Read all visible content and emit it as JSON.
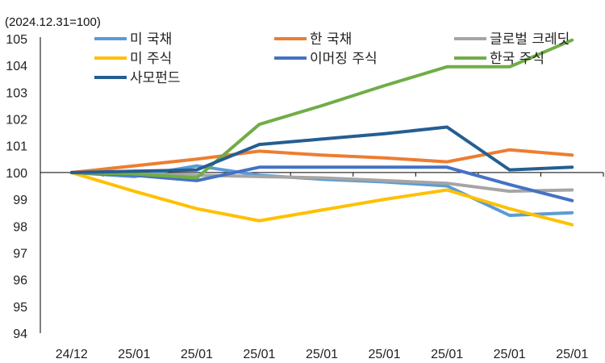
{
  "chart_data": {
    "type": "line",
    "unit_label": "(2024.12.31=100)",
    "categories": [
      "24/12",
      "25/01",
      "25/01",
      "25/01",
      "25/01",
      "25/01",
      "25/01",
      "25/01",
      "25/01"
    ],
    "ylim": [
      94,
      105
    ],
    "yticks": [
      94,
      95,
      96,
      97,
      98,
      99,
      100,
      101,
      102,
      103,
      104,
      105
    ],
    "grid": false,
    "legend_position": "top",
    "series": [
      {
        "name": "미 국채",
        "color": "#5b9bd5",
        "values": [
          100.0,
          99.85,
          100.25,
          99.9,
          99.75,
          99.65,
          99.5,
          98.4,
          98.5
        ]
      },
      {
        "name": "한 국채",
        "color": "#ed7d31",
        "values": [
          100.0,
          100.25,
          100.5,
          100.8,
          100.65,
          100.55,
          100.4,
          100.85,
          100.65
        ]
      },
      {
        "name": "글로벌 크레딧",
        "color": "#a5a5a5",
        "values": [
          100.0,
          99.95,
          99.9,
          99.85,
          99.8,
          99.7,
          99.6,
          99.3,
          99.35
        ]
      },
      {
        "name": "미 주식",
        "color": "#ffc000",
        "values": [
          100.0,
          99.3,
          98.65,
          98.2,
          98.6,
          99.0,
          99.35,
          98.65,
          98.05
        ]
      },
      {
        "name": "이머징 주식",
        "color": "#4472c4",
        "values": [
          100.0,
          99.9,
          99.7,
          100.2,
          100.2,
          100.2,
          100.2,
          99.55,
          98.95
        ]
      },
      {
        "name": "한국 주식",
        "color": "#70ad47",
        "values": [
          100.0,
          99.95,
          99.8,
          101.8,
          102.5,
          103.25,
          103.95,
          103.95,
          104.95
        ]
      },
      {
        "name": "사모펀드",
        "color": "#255e91",
        "values": [
          100.0,
          100.05,
          100.1,
          101.05,
          101.25,
          101.45,
          101.7,
          100.1,
          100.2
        ]
      }
    ]
  }
}
